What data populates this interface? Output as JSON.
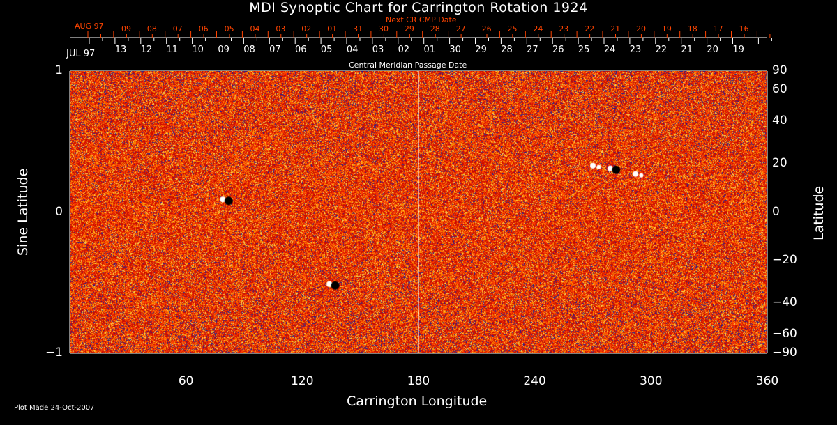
{
  "chart_data": {
    "type": "heatmap",
    "title": "MDI Synoptic Chart for Carrington Rotation 1924",
    "xlabel": "Carrington Longitude",
    "ylabel_left": "Sine Latitude",
    "ylabel_right": "Latitude",
    "xlim": [
      0,
      360
    ],
    "ylim": [
      -1,
      1
    ],
    "x_ticks": [
      "60",
      "120",
      "180",
      "240",
      "300",
      "360"
    ],
    "y_ticks_left": [
      "1",
      "0",
      "−1"
    ],
    "y_ticks_right": [
      "90",
      "60",
      "40",
      "20",
      "0",
      "−20",
      "−40",
      "−60",
      "−90"
    ],
    "y_ticks_right_values": [
      90,
      60,
      40,
      20,
      0,
      -20,
      -40,
      -60,
      -90
    ],
    "top_axis": {
      "label": "Central Meridian Passage Date",
      "month_label": "JUL 97",
      "dates": [
        "13",
        "12",
        "11",
        "10",
        "09",
        "08",
        "07",
        "06",
        "05",
        "04",
        "03",
        "02",
        "01",
        "30",
        "29",
        "28",
        "27",
        "26",
        "25",
        "24",
        "23",
        "22",
        "21",
        "20",
        "19"
      ]
    },
    "next_cr_axis": {
      "label": "Next CR CMP Date",
      "month_label": "AUG 97",
      "dates": [
        "09",
        "08",
        "07",
        "06",
        "05",
        "04",
        "03",
        "02",
        "01",
        "31",
        "30",
        "29",
        "28",
        "27",
        "26",
        "25",
        "24",
        "23",
        "22",
        "21",
        "20",
        "19",
        "18",
        "17",
        "16"
      ]
    },
    "colormap": [
      "#1a1aa0",
      "#c00000",
      "#ff3300",
      "#ff9900",
      "#ffee66",
      "#ffffff"
    ],
    "gridlines": "lon 180 and sine-latitude 0",
    "footnote": "Plot Made 24-Oct-2007"
  },
  "colors": {
    "next_cr": "#ff4400",
    "axes": "#ffffff",
    "background": "#000000"
  }
}
